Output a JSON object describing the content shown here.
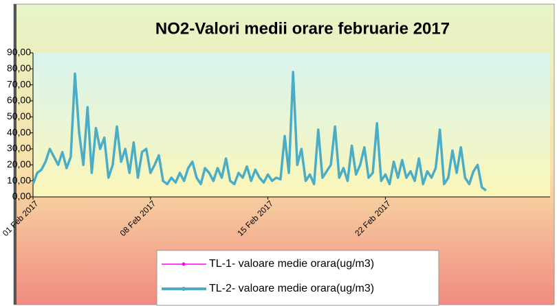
{
  "chart_data": {
    "type": "line",
    "title": "NO2-Valori medii orare februarie 2017",
    "categories": [
      "01 Feb 2017",
      null,
      null,
      null,
      null,
      null,
      null,
      null,
      null,
      null,
      null,
      null,
      null,
      null,
      null,
      null,
      null,
      null,
      null,
      null,
      null,
      null,
      null,
      null,
      null,
      null,
      null,
      null,
      "08 Feb 2017",
      null,
      null,
      null,
      null,
      null,
      null,
      null,
      null,
      null,
      null,
      null,
      null,
      null,
      null,
      null,
      null,
      null,
      null,
      null,
      null,
      null,
      null,
      null,
      null,
      null,
      null,
      null,
      "15 Feb 2017",
      null,
      null,
      null,
      null,
      null,
      null,
      null,
      null,
      null,
      null,
      null,
      null,
      null,
      null,
      null,
      null,
      null,
      null,
      null,
      null,
      null,
      null,
      null,
      null,
      null,
      null,
      null,
      "22 Feb 2017",
      null,
      null,
      null,
      null,
      null,
      null,
      null,
      null,
      null,
      null,
      null,
      null,
      null,
      null,
      null,
      null,
      null,
      null,
      null,
      null,
      null,
      null,
      null,
      null
    ],
    "series": [
      {
        "name": "TL-1- valoare medie orara(ug/m3)",
        "color": "#ff00ff",
        "values": [
          null,
          null,
          null,
          null,
          null,
          null,
          null,
          null,
          null,
          null,
          null,
          null,
          null,
          null,
          null,
          null,
          null,
          null,
          null,
          null,
          null,
          null,
          null,
          null,
          null,
          null,
          null,
          null,
          null,
          null,
          null,
          null,
          null,
          null,
          null,
          null,
          null,
          null,
          null,
          null,
          null,
          null,
          null,
          null,
          null,
          null,
          null,
          null,
          null,
          null,
          null,
          null,
          null,
          null,
          null,
          null,
          null,
          null,
          null,
          null,
          null,
          null,
          null,
          null,
          null,
          null,
          null,
          null,
          null,
          null,
          null,
          null,
          null,
          null,
          null,
          null,
          null,
          null,
          null,
          null,
          null,
          null,
          null,
          null,
          null,
          null,
          null,
          null,
          null,
          null,
          null,
          null,
          null,
          null,
          null,
          null,
          null,
          null,
          null,
          null,
          null,
          null,
          null,
          null,
          null,
          null,
          null,
          null,
          null
        ]
      },
      {
        "name": "TL-2- valoare medie orara(ug/m3)",
        "color": "#4bacc6",
        "values": [
          8,
          15,
          17,
          22,
          30,
          25,
          20,
          28,
          18,
          25,
          77,
          40,
          20,
          56,
          15,
          43,
          30,
          37,
          12,
          20,
          44,
          22,
          30,
          15,
          34,
          12,
          28,
          30,
          15,
          20,
          26,
          10,
          8,
          12,
          9,
          15,
          10,
          18,
          22,
          12,
          8,
          18,
          15,
          10,
          18,
          12,
          24,
          10,
          8,
          15,
          12,
          19,
          10,
          17,
          12,
          9,
          14,
          10,
          12,
          11,
          38,
          15,
          78,
          20,
          30,
          10,
          14,
          8,
          42,
          12,
          16,
          20,
          44,
          12,
          18,
          10,
          32,
          14,
          20,
          31,
          12,
          15,
          46,
          10,
          14,
          8,
          22,
          12,
          23,
          12,
          16,
          10,
          24,
          8,
          16,
          12,
          18,
          42,
          8,
          12,
          29,
          15,
          31,
          12,
          8,
          16,
          20,
          6,
          4
        ]
      }
    ],
    "ylim": [
      0,
      90
    ],
    "yticks": [
      {
        "value": 0,
        "label": "0,00"
      },
      {
        "value": 10,
        "label": "10,00"
      },
      {
        "value": 20,
        "label": "20,00"
      },
      {
        "value": 30,
        "label": "30,00"
      },
      {
        "value": 40,
        "label": "40,00"
      },
      {
        "value": 50,
        "label": "50,00"
      },
      {
        "value": 60,
        "label": "60,00"
      },
      {
        "value": 70,
        "label": "70,00"
      },
      {
        "value": 80,
        "label": "80,00"
      },
      {
        "value": 90,
        "label": "90,00"
      }
    ],
    "grid": false
  }
}
